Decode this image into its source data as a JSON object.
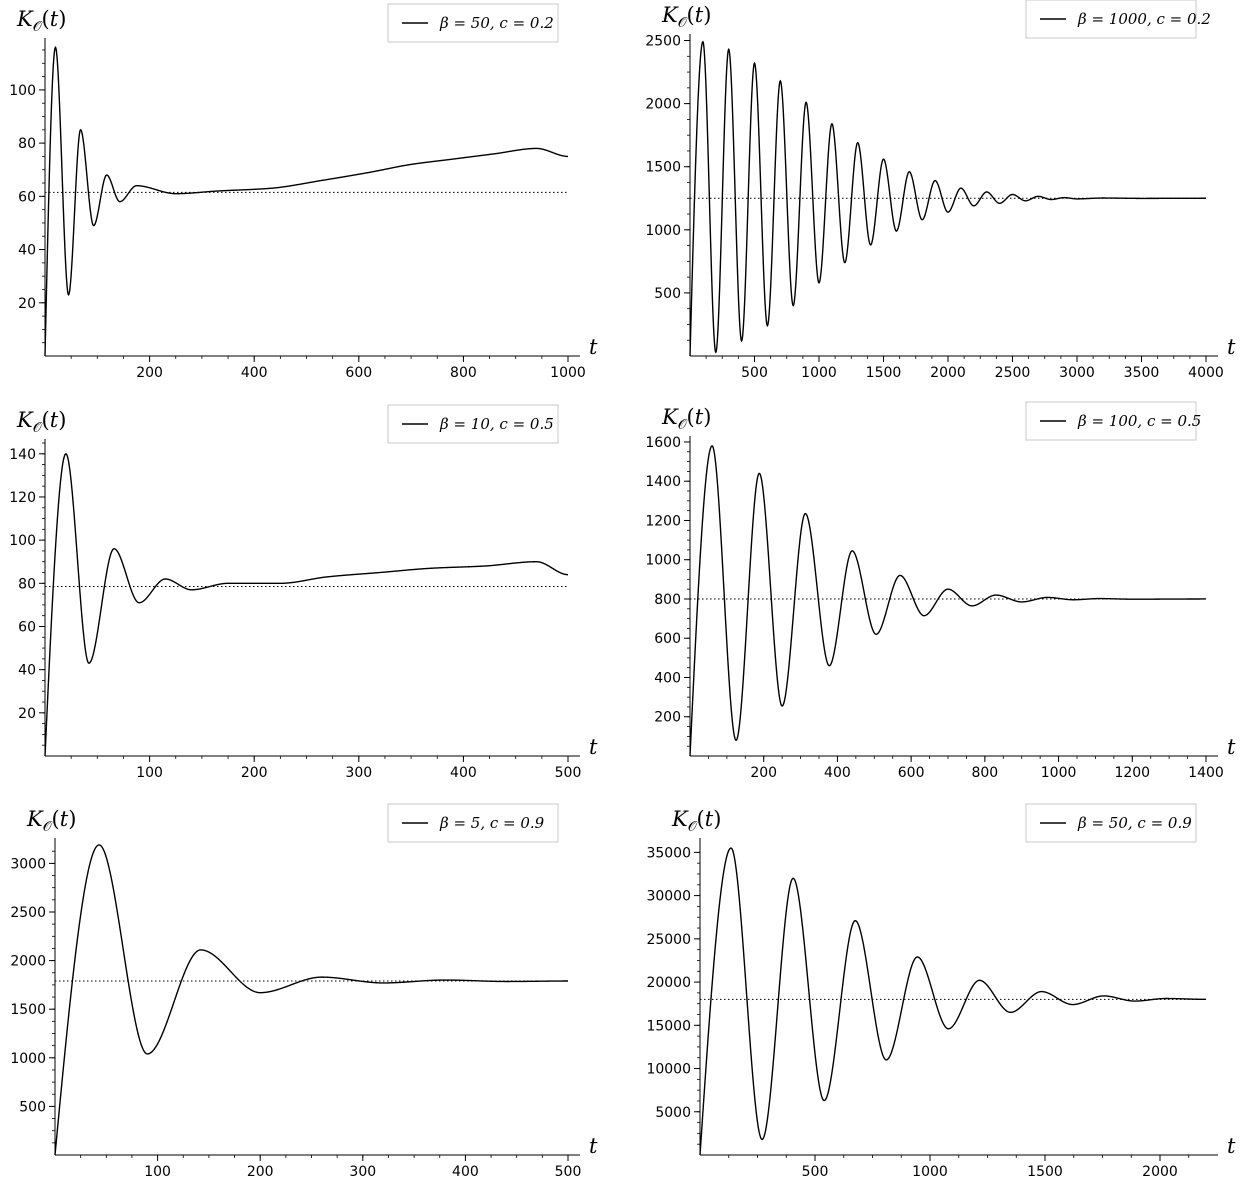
{
  "chart_data": [
    {
      "type": "line",
      "ylabel": "K𝒪(t)",
      "xlabel": "t",
      "legend": "β = 50, c = 0.2",
      "legend_position": "top-right",
      "xlim": [
        0,
        1000
      ],
      "ylim": [
        0,
        118
      ],
      "xticks": [
        200,
        400,
        600,
        800,
        1000
      ],
      "yticks": [
        20,
        40,
        60,
        80,
        100
      ],
      "asymptote": 61.5,
      "series_points": [
        [
          0,
          0
        ],
        [
          20,
          116
        ],
        [
          45,
          23
        ],
        [
          68,
          85
        ],
        [
          93,
          49
        ],
        [
          118,
          68
        ],
        [
          143,
          58
        ],
        [
          175,
          64
        ],
        [
          250,
          61
        ],
        [
          330,
          62
        ],
        [
          430,
          63
        ],
        [
          530,
          66
        ],
        [
          620,
          69
        ],
        [
          700,
          72
        ],
        [
          780,
          74
        ],
        [
          860,
          76
        ],
        [
          940,
          78
        ],
        [
          1000,
          75
        ]
      ]
    },
    {
      "type": "line",
      "ylabel": "K𝒪(t)",
      "xlabel": "t",
      "legend": "β = 1000, c = 0.2",
      "legend_position": "top-right",
      "xlim": [
        0,
        4000
      ],
      "ylim": [
        0,
        2520
      ],
      "xticks": [
        500,
        1000,
        1500,
        2000,
        2500,
        3000,
        3500,
        4000
      ],
      "yticks": [
        500,
        1000,
        1500,
        2000,
        2500
      ],
      "asymptote": 1250,
      "series_points": [
        [
          0,
          0
        ],
        [
          100,
          2490
        ],
        [
          200,
          30
        ],
        [
          300,
          2430
        ],
        [
          400,
          120
        ],
        [
          500,
          2320
        ],
        [
          600,
          240
        ],
        [
          700,
          2180
        ],
        [
          800,
          400
        ],
        [
          900,
          2010
        ],
        [
          1000,
          580
        ],
        [
          1100,
          1840
        ],
        [
          1200,
          740
        ],
        [
          1300,
          1690
        ],
        [
          1400,
          880
        ],
        [
          1500,
          1560
        ],
        [
          1600,
          990
        ],
        [
          1700,
          1460
        ],
        [
          1800,
          1080
        ],
        [
          1900,
          1390
        ],
        [
          2000,
          1140
        ],
        [
          2100,
          1330
        ],
        [
          2200,
          1190
        ],
        [
          2300,
          1300
        ],
        [
          2400,
          1210
        ],
        [
          2500,
          1280
        ],
        [
          2600,
          1230
        ],
        [
          2700,
          1265
        ],
        [
          2800,
          1240
        ],
        [
          2900,
          1255
        ],
        [
          3000,
          1245
        ],
        [
          3200,
          1252
        ],
        [
          3500,
          1249
        ],
        [
          4000,
          1250
        ]
      ]
    },
    {
      "type": "line",
      "ylabel": "K𝒪(t)",
      "xlabel": "t",
      "legend": "β = 10, c = 0.5",
      "legend_position": "top-right",
      "xlim": [
        0,
        500
      ],
      "ylim": [
        0,
        145
      ],
      "xticks": [
        100,
        200,
        300,
        400,
        500
      ],
      "yticks": [
        20,
        40,
        60,
        80,
        100,
        120,
        140
      ],
      "asymptote": 78.5,
      "series_points": [
        [
          0,
          0
        ],
        [
          20,
          140
        ],
        [
          42,
          43
        ],
        [
          66,
          96
        ],
        [
          90,
          71
        ],
        [
          115,
          82
        ],
        [
          140,
          77
        ],
        [
          175,
          80
        ],
        [
          225,
          80
        ],
        [
          270,
          83
        ],
        [
          320,
          85
        ],
        [
          370,
          87
        ],
        [
          420,
          88
        ],
        [
          470,
          90
        ],
        [
          500,
          84
        ]
      ]
    },
    {
      "type": "line",
      "ylabel": "K𝒪(t)",
      "xlabel": "t",
      "legend": "β = 100, c = 0.5",
      "legend_position": "top-right",
      "xlim": [
        0,
        1400
      ],
      "ylim": [
        0,
        1610
      ],
      "xticks": [
        200,
        400,
        600,
        800,
        1000,
        1200,
        1400
      ],
      "yticks": [
        200,
        400,
        600,
        800,
        1000,
        1200,
        1400,
        1600
      ],
      "asymptote": 800,
      "series_points": [
        [
          0,
          0
        ],
        [
          60,
          1580
        ],
        [
          125,
          80
        ],
        [
          188,
          1440
        ],
        [
          250,
          255
        ],
        [
          313,
          1235
        ],
        [
          378,
          460
        ],
        [
          440,
          1045
        ],
        [
          505,
          620
        ],
        [
          570,
          920
        ],
        [
          635,
          715
        ],
        [
          700,
          850
        ],
        [
          765,
          765
        ],
        [
          830,
          820
        ],
        [
          900,
          785
        ],
        [
          970,
          808
        ],
        [
          1040,
          796
        ],
        [
          1110,
          802
        ],
        [
          1200,
          799
        ],
        [
          1400,
          800
        ]
      ]
    },
    {
      "type": "line",
      "ylabel": "K𝒪(t)",
      "xlabel": "t",
      "legend": "β = 5, c = 0.9",
      "legend_position": "top-right",
      "xlim": [
        0,
        500
      ],
      "ylim": [
        0,
        3220
      ],
      "xticks": [
        100,
        200,
        300,
        400,
        500
      ],
      "yticks": [
        500,
        1000,
        1500,
        2000,
        2500,
        3000
      ],
      "asymptote": 1790,
      "series_points": [
        [
          0,
          0
        ],
        [
          43,
          3190
        ],
        [
          90,
          1040
        ],
        [
          142,
          2110
        ],
        [
          200,
          1670
        ],
        [
          260,
          1830
        ],
        [
          320,
          1770
        ],
        [
          380,
          1800
        ],
        [
          440,
          1785
        ],
        [
          500,
          1790
        ]
      ]
    },
    {
      "type": "line",
      "ylabel": "K𝒪(t)",
      "xlabel": "t",
      "legend": "β = 50, c = 0.9",
      "legend_position": "top-right",
      "xlim": [
        0,
        2200
      ],
      "ylim": [
        0,
        36200
      ],
      "xticks": [
        500,
        1000,
        1500,
        2000
      ],
      "yticks": [
        5000,
        10000,
        15000,
        20000,
        25000,
        30000,
        35000
      ],
      "asymptote": 18000,
      "series_points": [
        [
          0,
          0
        ],
        [
          135,
          35500
        ],
        [
          270,
          1800
        ],
        [
          405,
          32000
        ],
        [
          540,
          6300
        ],
        [
          675,
          27100
        ],
        [
          810,
          11000
        ],
        [
          945,
          22900
        ],
        [
          1080,
          14600
        ],
        [
          1215,
          20200
        ],
        [
          1350,
          16500
        ],
        [
          1485,
          18900
        ],
        [
          1620,
          17400
        ],
        [
          1755,
          18400
        ],
        [
          1890,
          17800
        ],
        [
          2025,
          18100
        ],
        [
          2200,
          18000
        ]
      ]
    }
  ]
}
